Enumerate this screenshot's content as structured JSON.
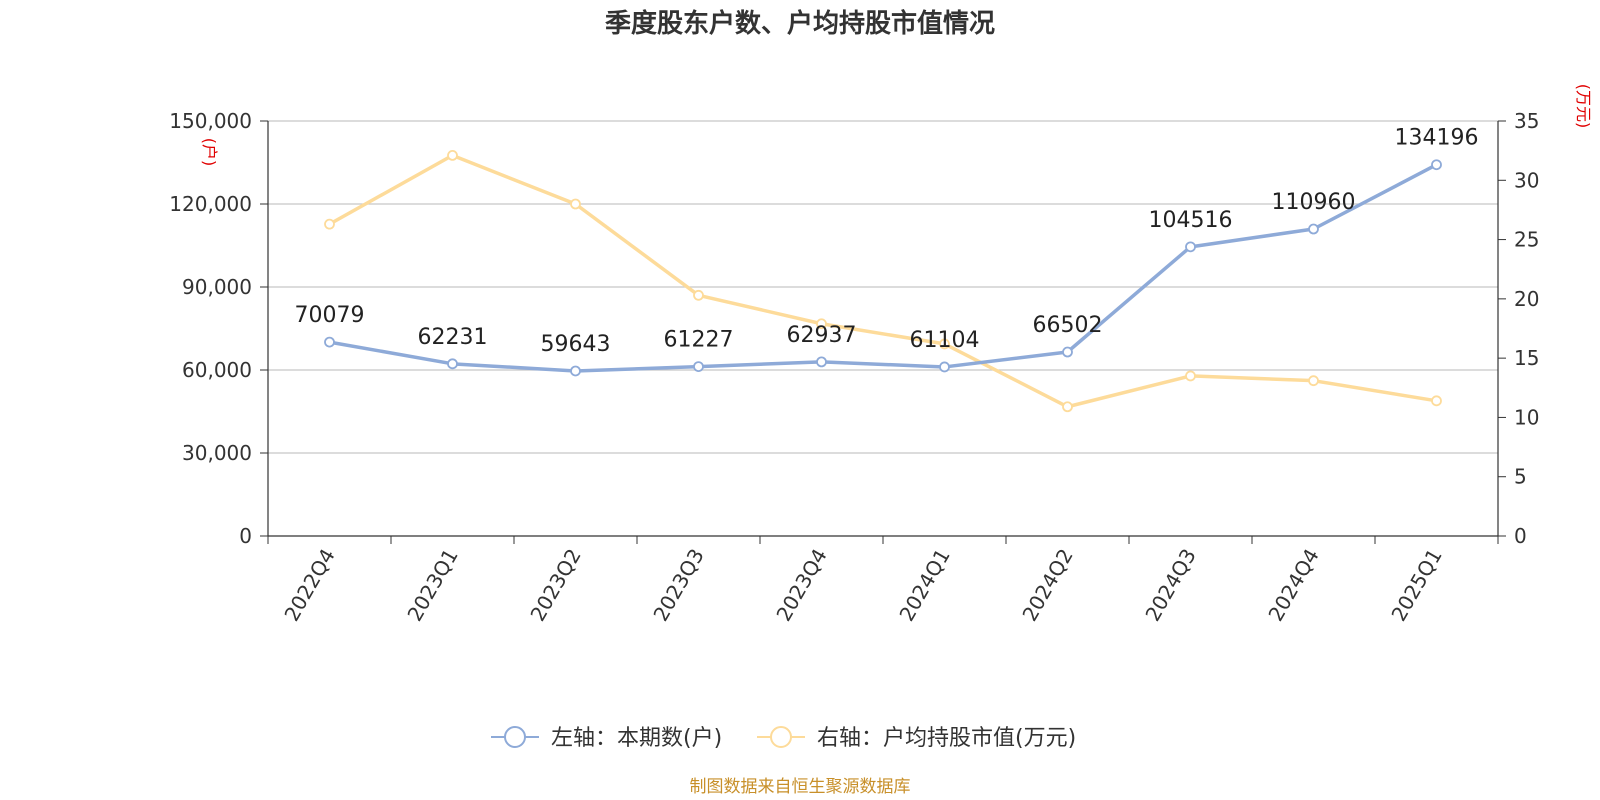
{
  "title": "季度股东户数、户均持股市值情况",
  "source": "制图数据来自恒生聚源数据库",
  "colors": {
    "left_series": "#8eaad8",
    "right_series": "#fddb9a",
    "unit": "#e00000",
    "source": "#c8902a"
  },
  "chart_data": {
    "type": "line",
    "title": "季度股东户数、户均持股市值情况",
    "categories": [
      "2022Q4",
      "2023Q1",
      "2023Q2",
      "2023Q3",
      "2023Q4",
      "2024Q1",
      "2024Q2",
      "2024Q3",
      "2024Q4",
      "2025Q1"
    ],
    "left_axis": {
      "unit": "(户)",
      "min": 0,
      "max": 150000,
      "ticks": [
        "0",
        "30,000",
        "60,000",
        "90,000",
        "120,000",
        "150,000"
      ]
    },
    "right_axis": {
      "unit": "(万元)",
      "min": 0,
      "max": 35,
      "ticks": [
        "0",
        "5",
        "10",
        "15",
        "20",
        "25",
        "30",
        "35"
      ]
    },
    "grid": true,
    "legend_position": "bottom",
    "series": [
      {
        "name": "左轴：本期数(户)",
        "axis": "left",
        "values": [
          70079,
          62231,
          59643,
          61227,
          62937,
          61104,
          66502,
          104516,
          110960,
          134196
        ],
        "labels": [
          "70079",
          "62231",
          "59643",
          "61227",
          "62937",
          "61104",
          "66502",
          "104516",
          "110960",
          "134196"
        ]
      },
      {
        "name": "右轴：户均持股市值(万元)",
        "axis": "right",
        "values": [
          26.3,
          32.1,
          28.0,
          20.3,
          17.9,
          16.2,
          10.9,
          13.5,
          13.1,
          11.4
        ]
      }
    ]
  }
}
